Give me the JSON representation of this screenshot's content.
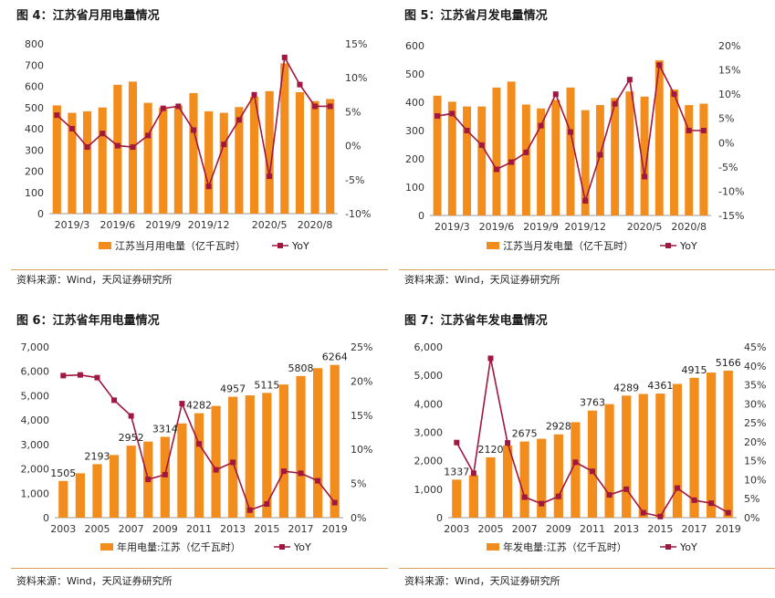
{
  "colors": {
    "bar": "#F28C1C",
    "line": "#A0173F",
    "rule": "#D9A45A",
    "axis": "#999999"
  },
  "panels": [
    {
      "title": "图 4：江苏省月用电量情况",
      "source": "资料来源：Wind，天风证券研究所",
      "legend_bar": "江苏当月用电量（亿千瓦时）",
      "legend_line": "YoY",
      "chart_data": {
        "type": "bar+line",
        "x_tick_labels": [
          "2019/3",
          "2019/6",
          "2019/9",
          "2019/12",
          "2020/5",
          "2020/8"
        ],
        "categories": [
          "2019/2",
          "2019/3",
          "2019/4",
          "2019/5",
          "2019/6",
          "2019/7",
          "2019/8",
          "2019/9",
          "2019/10",
          "2019/11",
          "2019/12",
          "2020/1",
          "2020/3",
          "2020/4",
          "2020/5",
          "2020/6",
          "2020/7",
          "2020/8",
          "2020/9"
        ],
        "series": [
          {
            "name": "江苏当月用电量（亿千瓦时）",
            "axis": "left",
            "values": [
              510,
              475,
              482,
              500,
              607,
              622,
              522,
              500,
              508,
              568,
              482,
              475,
              502,
              550,
              577,
              708,
              572,
              530,
              540
            ]
          },
          {
            "name": "YoY",
            "axis": "right",
            "values": [
              4.5,
              2.5,
              -0.2,
              1.8,
              0.0,
              -0.2,
              1.5,
              5.5,
              5.8,
              2.3,
              -6.0,
              0.2,
              3.8,
              7.5,
              -4.5,
              13.0,
              9.0,
              5.8,
              5.8
            ]
          }
        ],
        "y_left": {
          "min": 0,
          "max": 800,
          "step": 100,
          "ticks": [
            "0",
            "100",
            "200",
            "300",
            "400",
            "500",
            "600",
            "700",
            "800"
          ]
        },
        "y_right": {
          "min": -10,
          "max": 15,
          "step": 5,
          "ticks": [
            "-10%",
            "-5%",
            "0%",
            "5%",
            "10%",
            "15%"
          ]
        }
      }
    },
    {
      "title": "图 5：江苏省月发电量情况",
      "source": "资料来源：Wind，天风证券研究所",
      "legend_bar": "江苏当月发电量（亿千瓦时）",
      "legend_line": "YoY",
      "chart_data": {
        "type": "bar+line",
        "x_tick_labels": [
          "2019/3",
          "2019/6",
          "2019/9",
          "2019/12",
          "2020/5",
          "2020/8"
        ],
        "categories": [
          "2019/2",
          "2019/3",
          "2019/4",
          "2019/5",
          "2019/6",
          "2019/7",
          "2019/8",
          "2019/9",
          "2019/10",
          "2019/11",
          "2019/12",
          "2020/1",
          "2020/3",
          "2020/4",
          "2020/5",
          "2020/6",
          "2020/7",
          "2020/8",
          "2020/9"
        ],
        "series": [
          {
            "name": "江苏当月发电量（亿千瓦时）",
            "axis": "left",
            "values": [
              423,
              402,
              385,
              385,
              452,
              473,
              392,
              378,
              408,
              452,
              372,
              390,
              415,
              438,
              420,
              548,
              445,
              390,
              395
            ]
          },
          {
            "name": "YoY",
            "axis": "right",
            "values": [
              5.5,
              6.0,
              2.5,
              -0.5,
              -5.5,
              -4.0,
              -2.0,
              3.5,
              10.0,
              2.2,
              -12.0,
              -2.5,
              8.0,
              13.0,
              -7.0,
              16.0,
              10.0,
              2.5,
              2.5
            ]
          }
        ],
        "y_left": {
          "min": 0,
          "max": 600,
          "step": 100,
          "ticks": [
            "0",
            "100",
            "200",
            "300",
            "400",
            "500",
            "600"
          ]
        },
        "y_right": {
          "min": -15,
          "max": 20,
          "step": 5,
          "ticks": [
            "-15%",
            "-10%",
            "-5%",
            "0%",
            "5%",
            "10%",
            "15%",
            "20%"
          ]
        }
      }
    },
    {
      "title": "图 6：江苏省年用电量情况",
      "source": "资料来源：Wind，天风证券研究所",
      "legend_bar": "年用电量:江苏（亿千瓦时）",
      "legend_line": "YoY",
      "chart_data": {
        "type": "bar+line",
        "x_tick_labels": [
          "2003",
          "2005",
          "2007",
          "2009",
          "2011",
          "2013",
          "2015",
          "2017",
          "2019"
        ],
        "categories": [
          "2003",
          "2004",
          "2005",
          "2006",
          "2007",
          "2008",
          "2009",
          "2010",
          "2011",
          "2012",
          "2013",
          "2014",
          "2015",
          "2016",
          "2017",
          "2018",
          "2019"
        ],
        "series": [
          {
            "name": "年用电量:江苏（亿千瓦时）",
            "axis": "left",
            "values": [
              1505,
              1820,
              2193,
              2570,
              2952,
              3118,
              3314,
              3864,
              4282,
              4581,
              4957,
              5013,
              5115,
              5459,
              5808,
              6128,
              6264
            ],
            "data_labels": {
              "0": "1505",
              "2": "2193",
              "4": "2952",
              "6": "3314",
              "8": "4282",
              "10": "4957",
              "12": "5115",
              "14": "5808",
              "16": "6264"
            }
          },
          {
            "name": "YoY",
            "axis": "right",
            "values": [
              20.8,
              20.9,
              20.5,
              17.2,
              14.9,
              5.6,
              6.3,
              16.7,
              10.8,
              7.0,
              8.1,
              1.1,
              2.0,
              6.8,
              6.5,
              5.4,
              2.2
            ]
          }
        ],
        "y_left": {
          "min": 0,
          "max": 7000,
          "step": 1000,
          "ticks": [
            "0",
            "1,000",
            "2,000",
            "3,000",
            "4,000",
            "5,000",
            "6,000",
            "7,000"
          ]
        },
        "y_right": {
          "min": 0,
          "max": 25,
          "step": 5,
          "ticks": [
            "0%",
            "5%",
            "10%",
            "15%",
            "20%",
            "25%"
          ]
        }
      }
    },
    {
      "title": "图 7：江苏省年发电量情况",
      "source": "资料来源：Wind，天风证券研究所",
      "legend_bar": "年发电量:江苏（亿千瓦时）",
      "legend_line": "YoY",
      "chart_data": {
        "type": "bar+line",
        "x_tick_labels": [
          "2003",
          "2005",
          "2007",
          "2009",
          "2011",
          "2013",
          "2015",
          "2017",
          "2019"
        ],
        "categories": [
          "2003",
          "2004",
          "2005",
          "2006",
          "2007",
          "2008",
          "2009",
          "2010",
          "2011",
          "2012",
          "2013",
          "2014",
          "2015",
          "2016",
          "2017",
          "2018",
          "2019"
        ],
        "series": [
          {
            "name": "年发电量:江苏（亿千瓦时）",
            "axis": "left",
            "values": [
              1337,
              1493,
              2120,
              2537,
              2675,
              2773,
              2928,
              3355,
              3763,
              3990,
              4289,
              4346,
              4361,
              4700,
              4915,
              5100,
              5166
            ],
            "data_labels": {
              "0": "1337",
              "2": "2120",
              "4": "2675",
              "6": "2928",
              "8": "3763",
              "10": "4289",
              "12": "4361",
              "14": "4915",
              "16": "5166"
            }
          },
          {
            "name": "YoY",
            "axis": "right",
            "values": [
              19.8,
              11.7,
              42.0,
              19.7,
              5.4,
              3.7,
              5.6,
              14.6,
              12.2,
              6.0,
              7.5,
              1.3,
              0.3,
              7.8,
              4.6,
              3.8,
              1.3
            ]
          }
        ],
        "y_left": {
          "min": 0,
          "max": 6000,
          "step": 1000,
          "ticks": [
            "0",
            "1,000",
            "2,000",
            "3,000",
            "4,000",
            "5,000",
            "6,000"
          ]
        },
        "y_right": {
          "min": 0,
          "max": 45,
          "step": 5,
          "ticks": [
            "0%",
            "5%",
            "10%",
            "15%",
            "20%",
            "25%",
            "30%",
            "35%",
            "40%",
            "45%"
          ]
        }
      }
    }
  ]
}
